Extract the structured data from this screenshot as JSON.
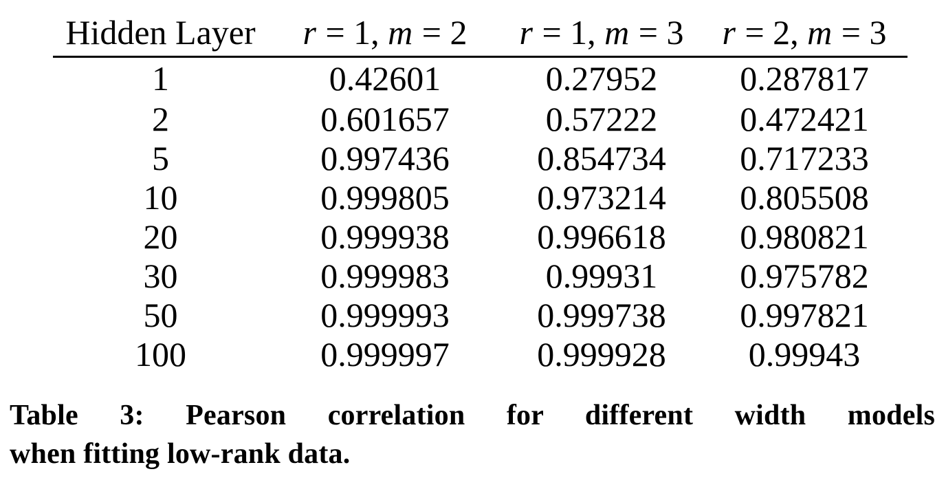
{
  "table": {
    "columns": [
      "Hidden Layer",
      "r = 1, m = 2",
      "r = 1, m = 3",
      "r = 2, m = 3"
    ],
    "rows": [
      [
        "1",
        "0.42601",
        "0.27952",
        "0.287817"
      ],
      [
        "2",
        "0.601657",
        "0.57222",
        "0.472421"
      ],
      [
        "5",
        "0.997436",
        "0.854734",
        "0.717233"
      ],
      [
        "10",
        "0.999805",
        "0.973214",
        "0.805508"
      ],
      [
        "20",
        "0.999938",
        "0.996618",
        "0.980821"
      ],
      [
        "30",
        "0.999983",
        "0.99931",
        "0.975782"
      ],
      [
        "50",
        "0.999993",
        "0.999738",
        "0.997821"
      ],
      [
        "100",
        "0.999997",
        "0.999928",
        "0.99943"
      ]
    ]
  },
  "caption": {
    "line1": "Table 3: Pearson correlation for different width models",
    "line2": "when fitting low-rank data."
  },
  "colors": {
    "text": "#000000",
    "background": "#ffffff",
    "rule": "#000000"
  },
  "chart_data": {
    "type": "table",
    "title": "Table 3: Pearson correlation for different width models when fitting low-rank data.",
    "columns": [
      "Hidden Layer",
      "r = 1, m = 2",
      "r = 1, m = 3",
      "r = 2, m = 3"
    ],
    "rows": [
      [
        1,
        0.42601,
        0.27952,
        0.287817
      ],
      [
        2,
        0.601657,
        0.57222,
        0.472421
      ],
      [
        5,
        0.997436,
        0.854734,
        0.717233
      ],
      [
        10,
        0.999805,
        0.973214,
        0.805508
      ],
      [
        20,
        0.999938,
        0.996618,
        0.980821
      ],
      [
        30,
        0.999983,
        0.99931,
        0.975782
      ],
      [
        50,
        0.999993,
        0.999738,
        0.997821
      ],
      [
        100,
        0.999997,
        0.999928,
        0.99943
      ]
    ]
  }
}
